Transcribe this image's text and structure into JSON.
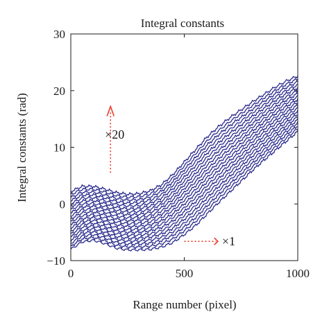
{
  "chart_data": {
    "type": "line",
    "title": "Integral constants",
    "xlabel": "Range number (pixel)",
    "ylabel": "Integral constants (rad)",
    "xlim": [
      0,
      1000
    ],
    "ylim": [
      -10,
      30
    ],
    "xticks": [
      0,
      500,
      1000
    ],
    "yticks": [
      -10,
      0,
      10,
      20,
      30
    ],
    "grid": false,
    "line_color": "#2a2a8c",
    "annotation_color": "#e8392a",
    "annotations": [
      {
        "text": "×20",
        "x": 230,
        "y": 12
      },
      {
        "text": "×1",
        "x": 660,
        "y": -6.5
      }
    ],
    "series_count": 20,
    "series_description_first": {
      "label": "×1",
      "x": [
        0,
        50,
        100,
        150,
        200,
        250,
        300,
        350,
        400,
        450,
        500,
        550,
        600,
        650,
        700,
        750,
        800,
        850,
        900,
        950,
        1000
      ],
      "y": [
        -8.0,
        -6.7,
        -6.4,
        -7.0,
        -7.8,
        -8.1,
        -8.1,
        -8.0,
        -7.6,
        -6.8,
        -5.4,
        -3.8,
        -1.8,
        0.2,
        2.1,
        4.0,
        5.9,
        7.7,
        9.4,
        11.1,
        12.8
      ]
    },
    "series_description_last": {
      "label": "×20",
      "x": [
        0,
        50,
        100,
        150,
        200,
        250,
        300,
        350,
        400,
        450,
        500,
        550,
        600,
        650,
        700,
        750,
        800,
        850,
        900,
        950,
        1000
      ],
      "y": [
        2.2,
        3.1,
        3.1,
        2.6,
        2.0,
        1.7,
        1.8,
        2.3,
        3.4,
        5.2,
        7.4,
        9.6,
        11.8,
        13.6,
        15.2,
        16.6,
        18.0,
        19.3,
        20.6,
        21.7,
        22.6
      ]
    }
  }
}
